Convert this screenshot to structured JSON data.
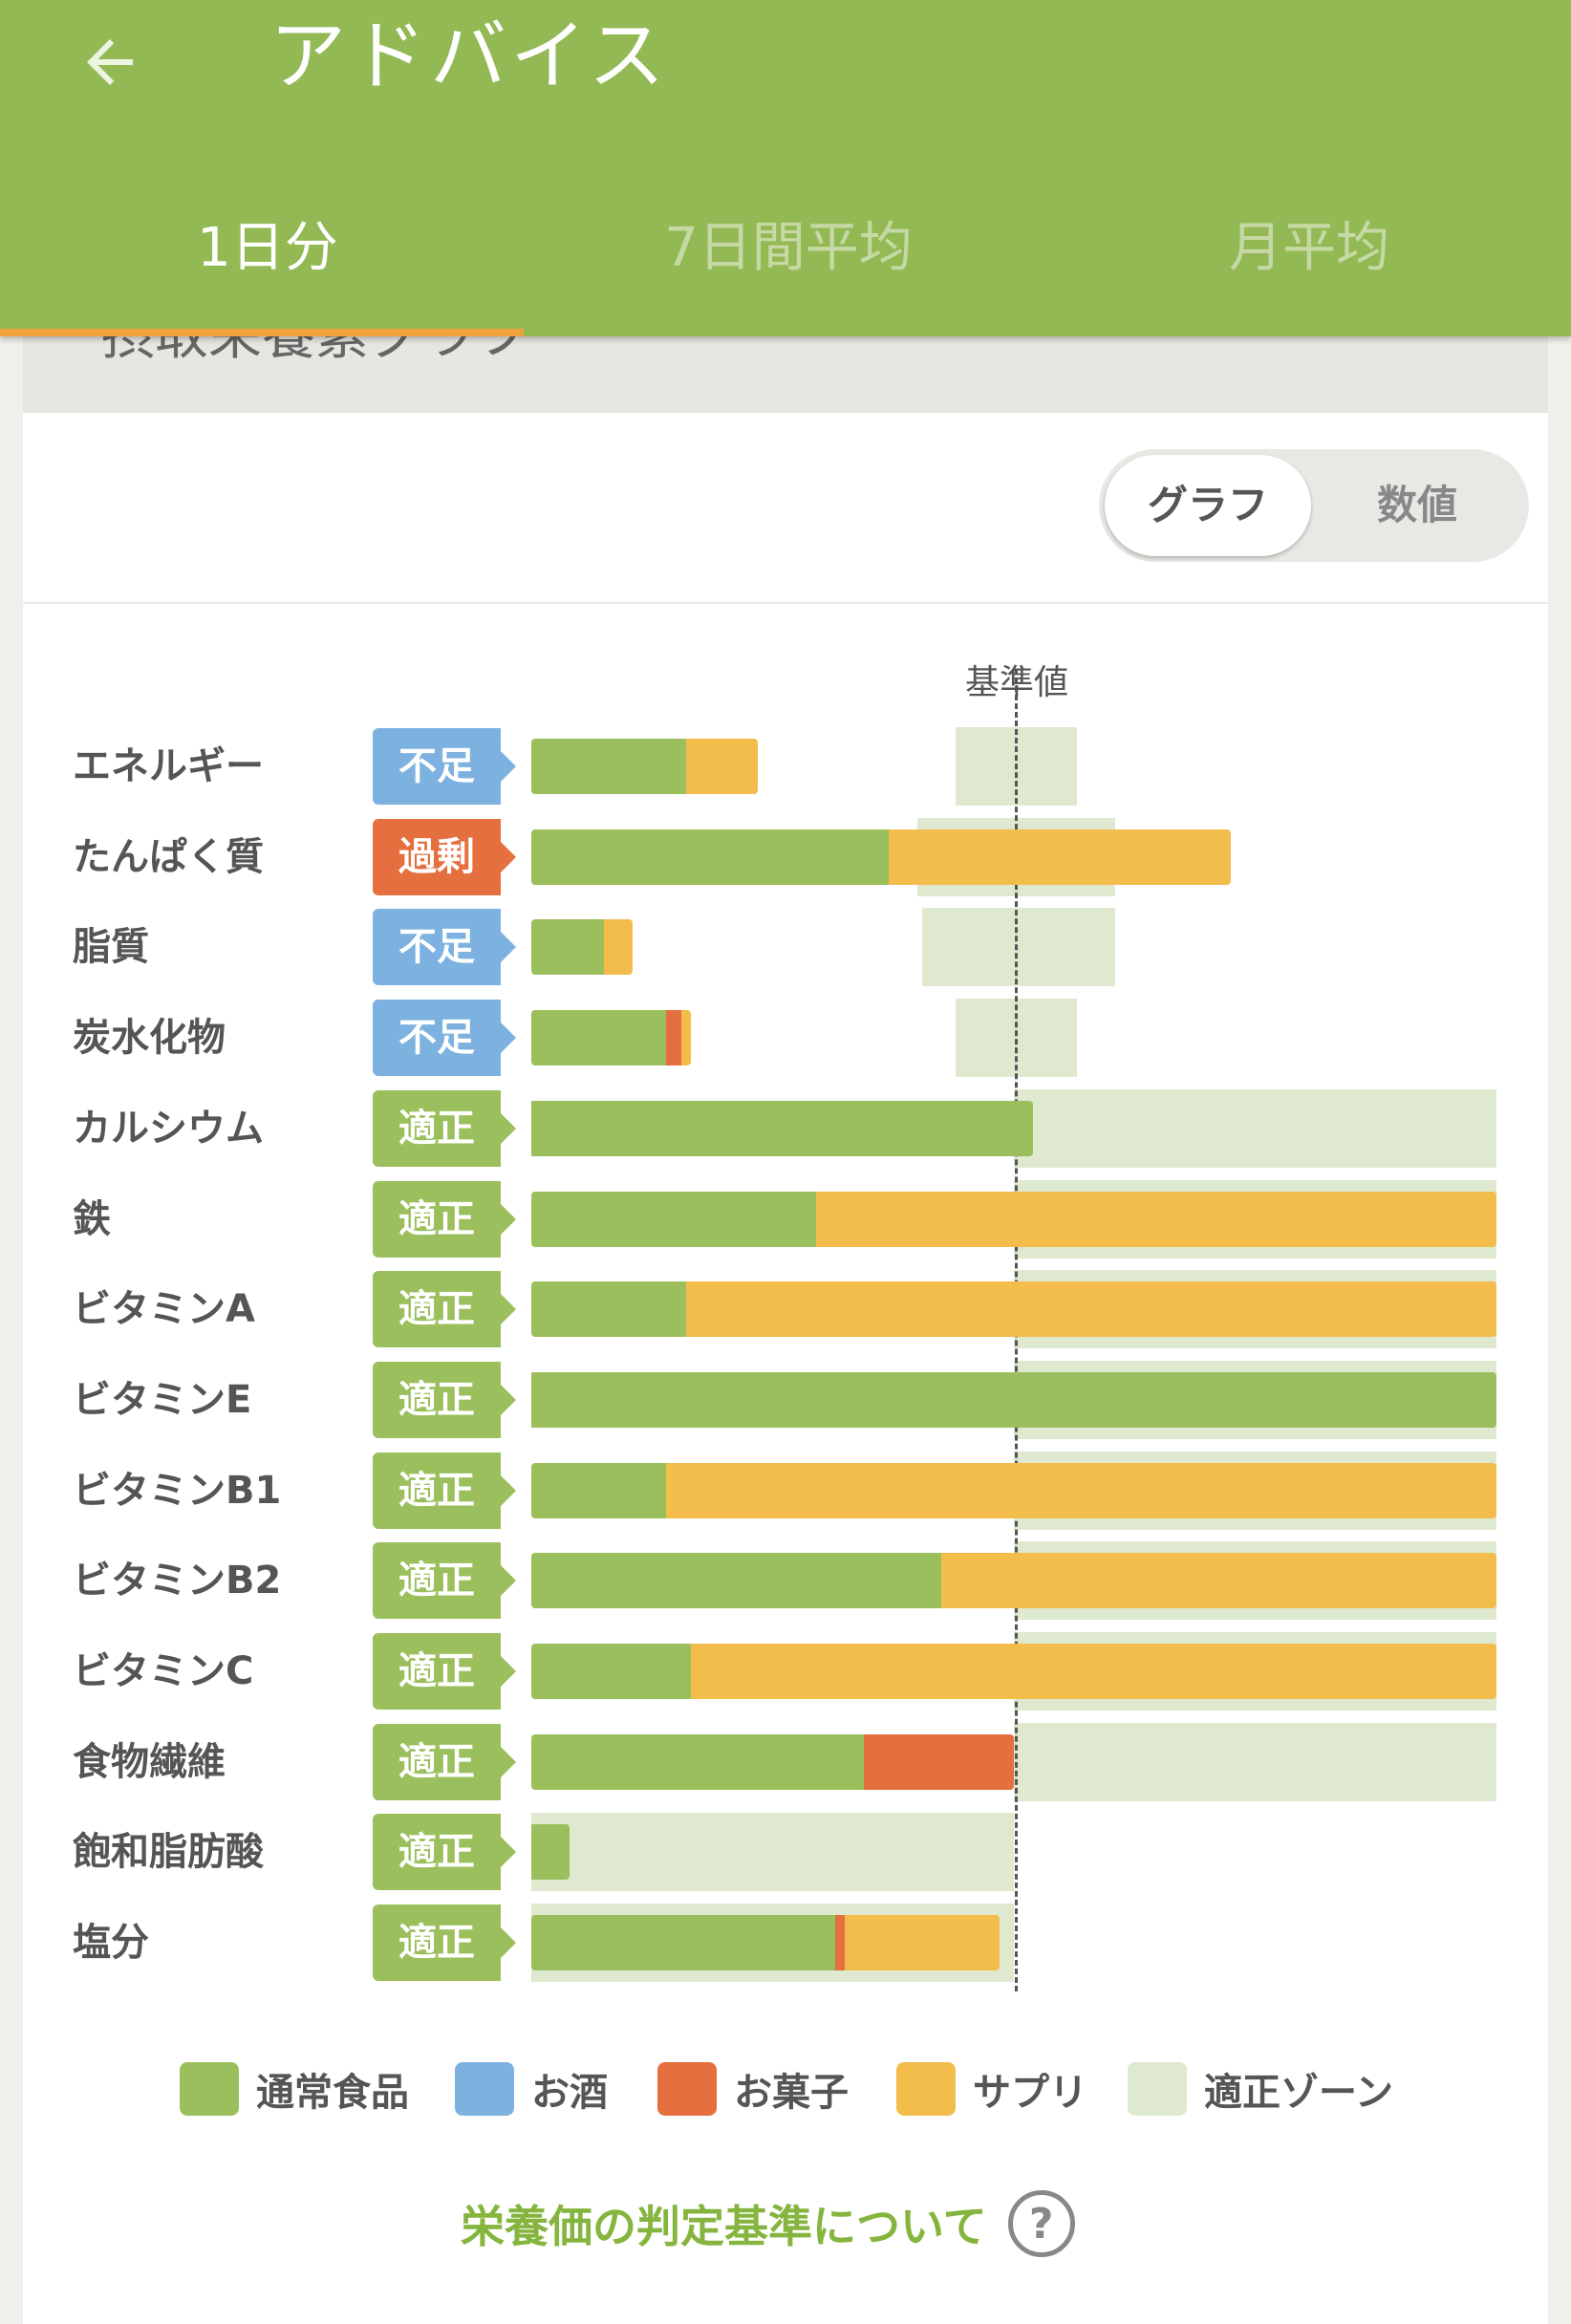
{
  "header": {
    "back_icon": "arrow-left-icon",
    "title": "アドバイス",
    "tabs": [
      {
        "label": "1日分",
        "active": true
      },
      {
        "label": "7日間平均",
        "active": false
      },
      {
        "label": "月平均",
        "active": false
      }
    ]
  },
  "section": {
    "title": "摂取栄養素グラフ"
  },
  "view_toggle": {
    "graph_label": "グラフ",
    "number_label": "数値",
    "selected": "グラフ"
  },
  "colors": {
    "normal_food": "#9bbf5c",
    "alcohol": "#7db2e0",
    "sweets": "#e56f3f",
    "supplement": "#f3bd4c",
    "zone": "#dfe9cf",
    "badge_shortage": "#7db2e0",
    "badge_excess": "#e56f3f",
    "badge_ok": "#9bbf5c"
  },
  "chart_data": {
    "type": "bar",
    "reference_label": "基準値",
    "units": "percent of reference value",
    "series_names": [
      "通常食品",
      "お酒",
      "お菓子",
      "サプリ"
    ],
    "rows": [
      {
        "name": "エネルギー",
        "status": "不足",
        "status_kind": "shortage",
        "normal": 32,
        "alcohol": 0,
        "sweets": 0,
        "supplement": 15,
        "zone": [
          88,
          113
        ]
      },
      {
        "name": "たんぱく質",
        "status": "過剰",
        "status_kind": "excess",
        "normal": 74,
        "alcohol": 0,
        "sweets": 0,
        "supplement": 71,
        "zone": [
          80,
          121
        ]
      },
      {
        "name": "脂質",
        "status": "不足",
        "status_kind": "shortage",
        "normal": 15,
        "alcohol": 0,
        "sweets": 0,
        "supplement": 6,
        "zone": [
          81,
          121
        ]
      },
      {
        "name": "炭水化物",
        "status": "不足",
        "status_kind": "shortage",
        "normal": 28,
        "alcohol": 0,
        "sweets": 3,
        "supplement": 2,
        "zone": [
          88,
          113
        ]
      },
      {
        "name": "カルシウム",
        "status": "適正",
        "status_kind": "ok",
        "normal": 104,
        "alcohol": 0,
        "sweets": 0,
        "supplement": 0,
        "zone": [
          100,
          200
        ]
      },
      {
        "name": "鉄",
        "status": "適正",
        "status_kind": "ok",
        "normal": 59,
        "alcohol": 0,
        "sweets": 0,
        "supplement": 141,
        "zone": [
          100,
          200
        ]
      },
      {
        "name": "ビタミンA",
        "status": "適正",
        "status_kind": "ok",
        "normal": 32,
        "alcohol": 0,
        "sweets": 0,
        "supplement": 168,
        "zone": [
          100,
          200
        ]
      },
      {
        "name": "ビタミンE",
        "status": "適正",
        "status_kind": "ok",
        "normal": 200,
        "alcohol": 0,
        "sweets": 0,
        "supplement": 0,
        "zone": [
          100,
          200
        ]
      },
      {
        "name": "ビタミンB1",
        "status": "適正",
        "status_kind": "ok",
        "normal": 28,
        "alcohol": 0,
        "sweets": 0,
        "supplement": 172,
        "zone": [
          100,
          200
        ]
      },
      {
        "name": "ビタミンB2",
        "status": "適正",
        "status_kind": "ok",
        "normal": 85,
        "alcohol": 0,
        "sweets": 0,
        "supplement": 115,
        "zone": [
          100,
          200
        ]
      },
      {
        "name": "ビタミンC",
        "status": "適正",
        "status_kind": "ok",
        "normal": 33,
        "alcohol": 0,
        "sweets": 0,
        "supplement": 167,
        "zone": [
          100,
          200
        ]
      },
      {
        "name": "食物繊維",
        "status": "適正",
        "status_kind": "ok",
        "normal": 69,
        "alcohol": 0,
        "sweets": 31,
        "supplement": 0,
        "zone": [
          100,
          200
        ]
      },
      {
        "name": "飽和脂肪酸",
        "status": "適正",
        "status_kind": "ok",
        "normal": 8,
        "alcohol": 0,
        "sweets": 0,
        "supplement": 0,
        "zone": [
          0,
          100
        ]
      },
      {
        "name": "塩分",
        "status": "適正",
        "status_kind": "ok",
        "normal": 63,
        "alcohol": 0,
        "sweets": 2,
        "supplement": 32,
        "zone": [
          0,
          100
        ]
      }
    ]
  },
  "legend": [
    {
      "label": "通常食品",
      "color": "#9bbf5c"
    },
    {
      "label": "お酒",
      "color": "#7db2e0"
    },
    {
      "label": "お菓子",
      "color": "#e56f3f"
    },
    {
      "label": "サプリ",
      "color": "#f3bd4c"
    },
    {
      "label": "適正ゾーン",
      "color": "#dfe9cf"
    }
  ],
  "footer": {
    "criteria_link": "栄養価の判定基準について",
    "help_icon": "question-circle-icon",
    "help_glyph": "?"
  }
}
